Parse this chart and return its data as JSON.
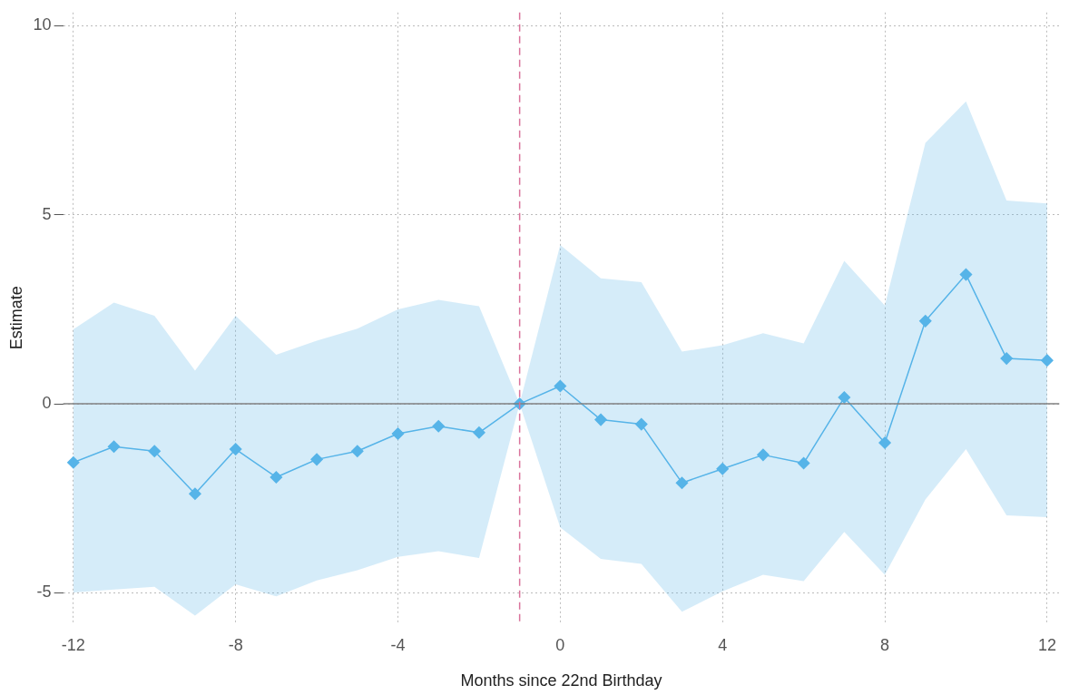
{
  "chart_data": {
    "type": "line",
    "xlabel": "Months since 22nd Birthday",
    "ylabel": "Estimate",
    "x": [
      -12,
      -11,
      -10,
      -9,
      -8,
      -7,
      -6,
      -5,
      -4,
      -3,
      -2,
      -1,
      0,
      1,
      2,
      3,
      4,
      5,
      6,
      7,
      8,
      9,
      10,
      11,
      12
    ],
    "series": [
      {
        "color": "#56b4e9",
        "values": [
          -1.55,
          -1.13,
          -1.25,
          -2.38,
          -1.2,
          -1.94,
          -1.47,
          -1.25,
          -0.79,
          -0.59,
          -0.76,
          0,
          0.47,
          -0.42,
          -0.54,
          -2.09,
          -1.72,
          -1.35,
          -1.57,
          0.17,
          -1.03,
          2.19,
          3.42,
          1.2,
          1.15
        ],
        "lower": [
          -4.99,
          -4.91,
          -4.84,
          -5.6,
          -4.77,
          -5.09,
          -4.67,
          -4.4,
          -4.05,
          -3.9,
          -4.08,
          0,
          -3.27,
          -4.1,
          -4.23,
          -5.5,
          -4.96,
          -4.52,
          -4.69,
          -3.39,
          -4.52,
          -2.53,
          -1.2,
          -2.95,
          -3.0
        ],
        "upper": [
          1.97,
          2.68,
          2.33,
          0.88,
          2.33,
          1.3,
          1.67,
          1.99,
          2.5,
          2.75,
          2.58,
          0,
          4.2,
          3.32,
          3.22,
          1.38,
          1.55,
          1.87,
          1.6,
          3.78,
          2.6,
          6.9,
          8.0,
          5.38,
          5.3
        ]
      }
    ],
    "xlim": [
      -12.25,
      12.3
    ],
    "ylim": [
      -5.8,
      10.35
    ],
    "xticks": [
      -12,
      -8,
      -4,
      0,
      4,
      8,
      12
    ],
    "yticks": [
      -5,
      0,
      5,
      10
    ],
    "grid": true,
    "legend": false,
    "marker": "diamond",
    "line_style": "solid",
    "ref_lines": [
      {
        "axis": "y",
        "value": 0,
        "color": "#808080",
        "line_style": "solid"
      },
      {
        "axis": "x",
        "value": -1,
        "color": "#d9739b",
        "line_style": "dashed"
      }
    ]
  }
}
